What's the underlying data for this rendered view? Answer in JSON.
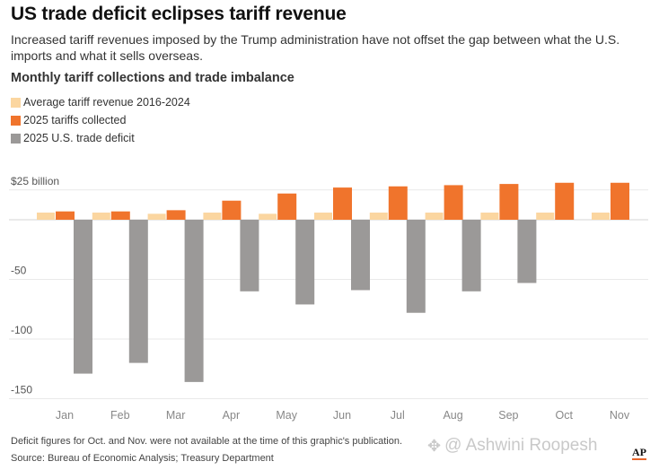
{
  "header": {
    "title": "US trade deficit eclipses tariff revenue",
    "subtitle": "Increased tariff revenues imposed by the Trump administration have not offset the gap between what the U.S. imports and what it sells overseas."
  },
  "chart_data": {
    "type": "bar",
    "title": "Monthly tariff collections and trade imbalance",
    "categories": [
      "Jan",
      "Feb",
      "Mar",
      "Apr",
      "May",
      "Jun",
      "Jul",
      "Aug",
      "Sep",
      "Oct",
      "Nov"
    ],
    "series": [
      {
        "name": "Average tariff revenue 2016-2024",
        "color": "#fbd6a0",
        "values": [
          6,
          6,
          5,
          6,
          5,
          6,
          6,
          6,
          6,
          6,
          6
        ]
      },
      {
        "name": "2025 tariffs collected",
        "color": "#f0742c",
        "values": [
          7,
          7,
          8,
          16,
          22,
          27,
          28,
          29,
          30,
          31,
          31
        ]
      },
      {
        "name": "2025 U.S. trade deficit",
        "color": "#9b9998",
        "values": [
          -129,
          -120,
          -136,
          -60,
          -71,
          -59,
          -78,
          -60,
          -53,
          null,
          null
        ]
      }
    ],
    "y_ticks": [
      {
        "value": 25,
        "label": "$25 billion"
      },
      {
        "value": 0,
        "label": ""
      },
      {
        "value": -50,
        "label": "-50"
      },
      {
        "value": -100,
        "label": "-100"
      },
      {
        "value": -150,
        "label": "-150"
      }
    ],
    "ylim": [
      -150,
      25
    ],
    "grid": true,
    "legend_position": "top-left"
  },
  "footer": {
    "note": "Deficit figures for Oct. and Nov. were not available at the time of this graphic's publication.",
    "source": "Source: Bureau of Economic Analysis; Treasury Department",
    "watermark": "@ Ashwini Roopesh",
    "logo": "AP"
  }
}
